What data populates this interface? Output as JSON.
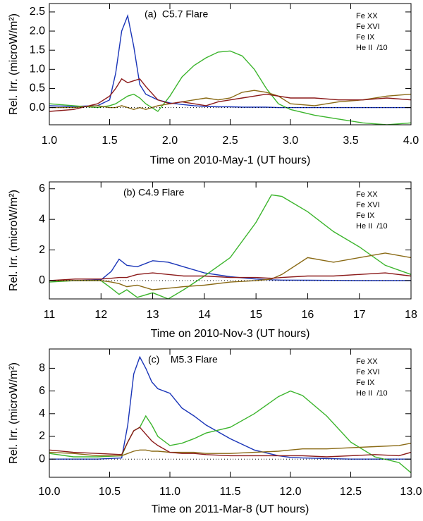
{
  "chart_data": [
    {
      "type": "line",
      "annotation": "(a)  C5.7 Flare",
      "x_label": "Time on 2010-May-1 (UT hours)",
      "y_label": "Rel. Irr. (microW/m²)",
      "x": [
        1.0,
        1.2,
        1.4,
        1.5,
        1.55,
        1.6,
        1.65,
        1.7,
        1.75,
        1.8,
        1.9,
        2.0,
        2.1,
        2.2,
        2.3,
        2.4,
        2.5,
        2.6,
        2.7,
        2.8,
        2.9,
        3.0,
        3.2,
        3.4,
        3.6,
        3.8,
        4.0
      ],
      "series": [
        {
          "name": "Fe XX",
          "color": "#1a35b8",
          "values": [
            0.05,
            0.03,
            0.05,
            0.2,
            0.9,
            2.0,
            2.4,
            1.6,
            0.6,
            0.35,
            0.2,
            0.12,
            0.08,
            0.05,
            0.03,
            0.02,
            0.02,
            0.01,
            0.01,
            0.01,
            0,
            0,
            0,
            0,
            0,
            0,
            0
          ]
        },
        {
          "name": "Fe XVI",
          "color": "#3cb52d",
          "values": [
            0.1,
            0.05,
            0,
            0.05,
            0.1,
            0.2,
            0.3,
            0.35,
            0.25,
            0.1,
            -0.1,
            0.3,
            0.8,
            1.1,
            1.3,
            1.45,
            1.48,
            1.35,
            1.0,
            0.5,
            0.1,
            -0.05,
            -0.2,
            -0.3,
            -0.4,
            -0.45,
            -0.4
          ]
        },
        {
          "name": "Fe IX",
          "color": "#8a6a15",
          "values": [
            0,
            0,
            0.05,
            0,
            0,
            0.05,
            0,
            -0.05,
            0,
            -0.05,
            0.05,
            0.1,
            0.15,
            0.2,
            0.25,
            0.2,
            0.25,
            0.4,
            0.45,
            0.4,
            0.3,
            0.1,
            0.05,
            0.15,
            0.2,
            0.3,
            0.35
          ]
        },
        {
          "name": "He II  /10",
          "color": "#8b1a1a",
          "values": [
            -0.1,
            -0.05,
            0.1,
            0.3,
            0.5,
            0.75,
            0.65,
            0.7,
            0.75,
            0.55,
            0.2,
            0.1,
            0.15,
            0.1,
            0.05,
            0.15,
            0.2,
            0.25,
            0.3,
            0.35,
            0.3,
            0.25,
            0.25,
            0.2,
            0.2,
            0.25,
            0.2
          ]
        }
      ],
      "xlim": [
        1.0,
        4.0
      ],
      "xticks": [
        {
          "value": 1.0,
          "label": "1.0"
        },
        1.5,
        {
          "value": 2.0,
          "label": "2.0"
        },
        2.5,
        {
          "value": 3.0,
          "label": "3.0"
        },
        3.5,
        {
          "value": 4.0,
          "label": "4.0"
        }
      ],
      "ylim": [
        -0.45,
        2.72
      ],
      "yticks": [
        {
          "value": 0,
          "label": "0.0"
        },
        0.5,
        {
          "value": 1,
          "label": "1.0"
        },
        1.5,
        {
          "value": 2,
          "label": "2.0"
        },
        2.5
      ],
      "zero_line": true
    },
    {
      "type": "line",
      "annotation": "(b) C4.9 Flare",
      "x_label": "Time on 2010-Nov-3 (UT hours)",
      "y_label": "Rel. Irr. (microW/m²)",
      "x": [
        11,
        11.5,
        12,
        12.2,
        12.35,
        12.5,
        12.7,
        13,
        13.3,
        13.6,
        14,
        14.5,
        15,
        15.3,
        15.5,
        16,
        16.5,
        17,
        17.5,
        18
      ],
      "series": [
        {
          "name": "Fe XX",
          "color": "#1a35b8",
          "values": [
            0,
            0,
            0.05,
            0.6,
            1.4,
            1.0,
            0.9,
            1.3,
            1.2,
            0.9,
            0.5,
            0.25,
            0.1,
            0.05,
            0.03,
            0.02,
            0.01,
            0,
            0,
            0
          ]
        },
        {
          "name": "Fe XVI",
          "color": "#3cb52d",
          "values": [
            -0.1,
            0,
            0,
            -0.5,
            -0.9,
            -0.6,
            -1.1,
            -0.8,
            -1.2,
            -0.6,
            0.3,
            1.5,
            3.8,
            5.6,
            5.5,
            4.5,
            3.2,
            2.2,
            1.0,
            0.4
          ]
        },
        {
          "name": "Fe IX",
          "color": "#8a6a15",
          "values": [
            0,
            0,
            0,
            -0.1,
            -0.2,
            -0.4,
            -0.3,
            -0.6,
            -0.5,
            -0.4,
            -0.3,
            -0.1,
            0,
            0.1,
            0.4,
            1.5,
            1.2,
            1.5,
            1.8,
            1.5
          ]
        },
        {
          "name": "He II  /10",
          "color": "#8b1a1a",
          "values": [
            0,
            0.1,
            0.1,
            0.15,
            0.2,
            0.2,
            0.4,
            0.5,
            0.4,
            0.3,
            0.3,
            0.2,
            0.2,
            0.15,
            0.2,
            0.3,
            0.3,
            0.4,
            0.5,
            0.3
          ]
        }
      ],
      "xlim": [
        11,
        18
      ],
      "xticks": [
        11,
        12,
        13,
        14,
        15,
        16,
        17,
        18
      ],
      "ylim": [
        -1.2,
        6.45
      ],
      "yticks": [
        0,
        2,
        4,
        6
      ],
      "zero_line": true
    },
    {
      "type": "line",
      "annotation": "(c)    M5.3 Flare",
      "x_label": "Time on 2011-Mar-8 (UT hours)",
      "y_label": "Rel. Irr. (microW/m²)",
      "x": [
        10,
        10.2,
        10.4,
        10.6,
        10.65,
        10.7,
        10.75,
        10.8,
        10.85,
        10.9,
        11,
        11.1,
        11.2,
        11.3,
        11.5,
        11.7,
        11.9,
        12.0,
        12.1,
        12.3,
        12.5,
        12.7,
        12.9,
        13.0
      ],
      "series": [
        {
          "name": "Fe XX",
          "color": "#1a35b8",
          "values": [
            0,
            0,
            0,
            0.1,
            3,
            7.5,
            9,
            8,
            6.8,
            6.2,
            5.8,
            4.5,
            3.8,
            3.0,
            1.8,
            0.8,
            0.3,
            0.15,
            0.1,
            0.05,
            0,
            0,
            0,
            0
          ]
        },
        {
          "name": "Fe XVI",
          "color": "#3cb52d",
          "values": [
            0.5,
            0.2,
            0.2,
            0.3,
            1.5,
            2.5,
            2.8,
            3.8,
            3,
            2,
            1.2,
            1.4,
            1.8,
            2.3,
            2.8,
            4,
            5.5,
            6,
            5.6,
            3.8,
            1.5,
            0.2,
            -0.3,
            -1.2
          ]
        },
        {
          "name": "Fe IX",
          "color": "#8a6a15",
          "values": [
            0.6,
            0.5,
            0.3,
            0.3,
            0.5,
            0.7,
            0.8,
            0.8,
            0.7,
            0.7,
            0.6,
            0.6,
            0.6,
            0.5,
            0.5,
            0.6,
            0.7,
            0.8,
            0.9,
            0.9,
            1.0,
            1.1,
            1.2,
            1.4
          ]
        },
        {
          "name": "He II  /10",
          "color": "#8b1a1a",
          "values": [
            0.8,
            0.6,
            0.5,
            0.4,
            1.5,
            2.5,
            2.8,
            2.2,
            1.6,
            1.2,
            0.6,
            0.5,
            0.5,
            0.4,
            0.3,
            0.3,
            0.3,
            0.3,
            0.3,
            0.2,
            0.3,
            0.4,
            0.3,
            0.6
          ]
        }
      ],
      "xlim": [
        10.0,
        13.0
      ],
      "xticks": [
        {
          "value": 10.0,
          "label": "10.0"
        },
        10.5,
        {
          "value": 11.0,
          "label": "11.0"
        },
        11.5,
        {
          "value": 12.0,
          "label": "12.0"
        },
        12.5,
        {
          "value": 13.0,
          "label": "13.0"
        }
      ],
      "ylim": [
        -1.6,
        9.7
      ],
      "yticks": [
        0,
        2,
        4,
        6,
        8
      ],
      "zero_line": true
    }
  ]
}
